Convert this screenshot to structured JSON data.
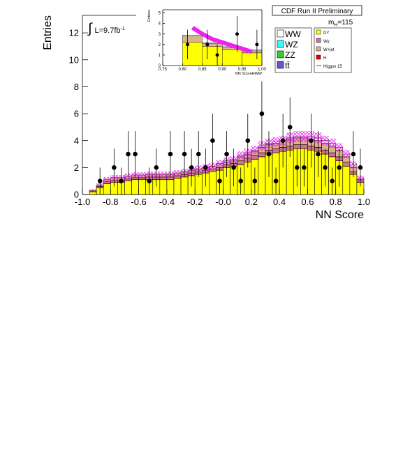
{
  "chart_data": [
    {
      "type": "histogram",
      "title": "CDF Run II Preliminary",
      "xlabel": "NN Score",
      "ylabel": "Entries",
      "mass_label": {
        "text": "m",
        "sub": "H",
        "rest": "=115"
      },
      "lumi_label": {
        "symbol": "∫",
        "text": "L=9.7fb",
        "sup": "-1"
      },
      "bins": [
        -1.0,
        -0.95,
        -0.9,
        -0.85,
        -0.8,
        -0.75,
        -0.7,
        -0.65,
        -0.6,
        -0.55,
        -0.5,
        -0.45,
        -0.4,
        -0.35,
        -0.3,
        -0.25,
        -0.2,
        -0.15,
        -0.1,
        -0.05,
        0.0,
        0.05,
        0.1,
        0.15,
        0.2,
        0.25,
        0.3,
        0.35,
        0.4,
        0.45,
        0.5,
        0.55,
        0.6,
        0.65,
        0.7,
        0.75,
        0.8,
        0.85,
        0.9,
        0.95,
        1.0
      ],
      "series": [
        {
          "name": "DY",
          "color": "#ffff00",
          "values": [
            0,
            0.2,
            0.5,
            0.8,
            0.9,
            0.9,
            1.0,
            1.1,
            1.1,
            1.1,
            1.1,
            1.1,
            1.1,
            1.2,
            1.3,
            1.4,
            1.5,
            1.6,
            1.7,
            1.8,
            2.0,
            2.1,
            2.2,
            2.4,
            2.6,
            2.8,
            3.0,
            3.1,
            3.2,
            3.3,
            3.4,
            3.4,
            3.3,
            3.2,
            3.0,
            2.8,
            2.5,
            2.1,
            1.5,
            0.9
          ]
        },
        {
          "name": "Wγ",
          "color": "#d4708e",
          "values": [
            0,
            0.05,
            0.1,
            0.15,
            0.15,
            0.15,
            0.15,
            0.15,
            0.15,
            0.2,
            0.2,
            0.2,
            0.2,
            0.2,
            0.2,
            0.2,
            0.2,
            0.2,
            0.2,
            0.2,
            0.2,
            0.2,
            0.3,
            0.3,
            0.3,
            0.3,
            0.3,
            0.3,
            0.3,
            0.3,
            0.3,
            0.3,
            0.3,
            0.3,
            0.3,
            0.3,
            0.3,
            0.3,
            0.2,
            0.1
          ]
        },
        {
          "name": "W+jet",
          "color": "#d9b38c",
          "values": [
            0,
            0.05,
            0.1,
            0.15,
            0.2,
            0.2,
            0.2,
            0.2,
            0.2,
            0.2,
            0.2,
            0.2,
            0.2,
            0.2,
            0.2,
            0.2,
            0.2,
            0.2,
            0.2,
            0.2,
            0.2,
            0.2,
            0.3,
            0.3,
            0.3,
            0.4,
            0.4,
            0.4,
            0.4,
            0.5,
            0.5,
            0.5,
            0.5,
            0.5,
            0.5,
            0.5,
            0.5,
            0.4,
            0.3,
            0.1
          ]
        },
        {
          "name": "WW",
          "color": "#ffffff",
          "values": [
            0,
            0,
            0,
            0,
            0,
            0,
            0,
            0,
            0,
            0,
            0,
            0,
            0,
            0,
            0,
            0,
            0,
            0,
            0,
            0.1,
            0.1,
            0.1,
            0.1,
            0.1,
            0.1,
            0.1,
            0.1,
            0.1,
            0.1,
            0.1,
            0.1,
            0.1,
            0.2,
            0.2,
            0.2,
            0.2,
            0.2,
            0.2,
            0.2,
            0.1
          ]
        }
      ],
      "legend_extra": [
        {
          "name": "WZ",
          "color": "#33ffff"
        },
        {
          "name": "ZZ",
          "color": "#33cc33"
        },
        {
          "name": "tt̄",
          "color": "#6655cc"
        },
        {
          "name": "H",
          "color": "#ee0000"
        },
        {
          "name": "Higgsx 15",
          "color": "#ee0000"
        }
      ],
      "band": {
        "color": "#ee22ee",
        "values": [
          0,
          0.1,
          0.15,
          0.2,
          0.2,
          0.2,
          0.2,
          0.2,
          0.2,
          0.2,
          0.2,
          0.2,
          0.2,
          0.2,
          0.2,
          0.2,
          0.25,
          0.25,
          0.25,
          0.25,
          0.25,
          0.25,
          0.3,
          0.3,
          0.3,
          0.35,
          0.35,
          0.35,
          0.35,
          0.4,
          0.4,
          0.4,
          0.4,
          0.4,
          0.35,
          0.35,
          0.3,
          0.3,
          0.25,
          0.2
        ]
      },
      "data": {
        "x": [
          -0.875,
          -0.775,
          -0.725,
          -0.675,
          -0.625,
          -0.525,
          -0.475,
          -0.375,
          -0.275,
          -0.225,
          -0.175,
          -0.125,
          -0.075,
          -0.025,
          0.025,
          0.075,
          0.125,
          0.175,
          0.225,
          0.275,
          0.325,
          0.375,
          0.425,
          0.475,
          0.525,
          0.575,
          0.625,
          0.675,
          0.725,
          0.775,
          0.825,
          0.925,
          0.975
        ],
        "values": [
          1,
          2,
          1,
          3,
          3,
          1,
          2,
          3,
          3,
          2,
          3,
          2,
          4,
          1,
          3,
          2,
          1,
          4,
          1,
          6,
          3,
          1,
          4,
          5,
          2,
          2,
          4,
          3,
          2,
          1,
          2,
          3,
          2
        ],
        "errors": [
          1,
          1.4,
          1,
          1.7,
          1.7,
          1,
          1.4,
          1.7,
          1.7,
          1.4,
          1.7,
          1.4,
          2,
          1,
          1.7,
          1.4,
          1,
          2,
          1,
          2.4,
          1.7,
          1,
          2,
          2.2,
          1.4,
          1.4,
          2,
          1.7,
          1.4,
          1,
          1.4,
          1.7,
          1.4
        ]
      },
      "xlim": [
        -1.0,
        1.0
      ],
      "ylim": [
        0,
        13.3
      ],
      "xticks": [
        {
          "value": -1.0,
          "label": "-1.0"
        },
        {
          "value": -0.8,
          "label": "-0.8"
        },
        {
          "value": -0.6,
          "label": "-0.6"
        },
        {
          "value": -0.4,
          "label": "-0.4"
        },
        {
          "value": -0.2,
          "label": "-0.2"
        },
        {
          "value": 0.0,
          "label": "-0.0"
        },
        {
          "value": 0.2,
          "label": "0.2"
        },
        {
          "value": 0.4,
          "label": "0.4"
        },
        {
          "value": 0.6,
          "label": "0.6"
        },
        {
          "value": 0.8,
          "label": "0.8"
        },
        {
          "value": 1.0,
          "label": "1.0"
        }
      ],
      "yticks": [
        0,
        2,
        4,
        6,
        8,
        10,
        12
      ]
    },
    {
      "type": "histogram",
      "xlabel": "NN ScoreHWW",
      "ylabel": "Entries",
      "bins": [
        0.75,
        0.8,
        0.85,
        0.9,
        0.95,
        1.0
      ],
      "series": [
        {
          "color": "#ffff00",
          "values": [
            0,
            2.2,
            1.8,
            1.5,
            1.2
          ]
        },
        {
          "color": "#d9b38c",
          "values": [
            0,
            0.6,
            0.3,
            0.2,
            0.2
          ]
        },
        {
          "color": "#ffffff",
          "values": [
            0,
            0.1,
            0.1,
            0.1,
            0.1
          ]
        }
      ],
      "signal": {
        "color": "#ee22ee",
        "x": [
          0.825,
          0.85,
          0.875,
          0.9,
          0.925,
          0.95,
          0.975
        ],
        "values": [
          3.6,
          3.0,
          2.5,
          2.2,
          1.9,
          1.6,
          1.3
        ]
      },
      "data": {
        "x": [
          0.8125,
          0.8625,
          0.8875,
          0.9375,
          0.9875
        ],
        "values": [
          2,
          2,
          1,
          3,
          2
        ],
        "errors": [
          1.4,
          1.4,
          1,
          1.7,
          1.4
        ]
      },
      "xlim": [
        0.75,
        1.0
      ],
      "ylim": [
        0,
        5.3
      ],
      "xticks": [
        {
          "value": 0.75,
          "label": "0.75"
        },
        {
          "value": 0.8,
          "label": "0.80"
        },
        {
          "value": 0.85,
          "label": "0.85"
        },
        {
          "value": 0.9,
          "label": "0.90"
        },
        {
          "value": 0.95,
          "label": "0.95"
        },
        {
          "value": 1.0,
          "label": "1.00"
        }
      ],
      "yticks": [
        0,
        1,
        2,
        3,
        4,
        5
      ]
    }
  ]
}
